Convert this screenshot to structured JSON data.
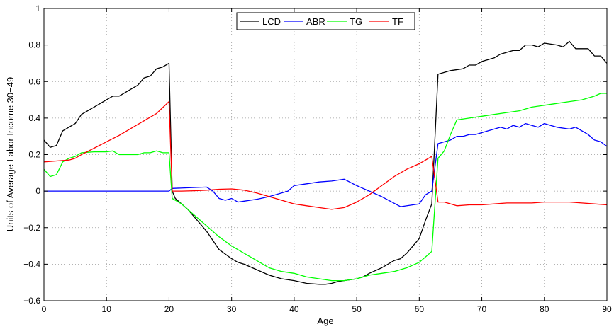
{
  "chart_data": {
    "type": "line",
    "title": "",
    "xlabel": "Age",
    "ylabel": "Units of Average Labor Income 30−49",
    "xlim": [
      0,
      90
    ],
    "ylim": [
      -0.6,
      1
    ],
    "xticks": [
      0,
      10,
      20,
      30,
      40,
      50,
      60,
      70,
      80,
      90
    ],
    "xtick_labels": [
      "0",
      "10",
      "20",
      "30",
      "40",
      "50",
      "60",
      "70",
      "80",
      "90"
    ],
    "yticks": [
      -0.6,
      -0.4,
      -0.2,
      0,
      0.2,
      0.4,
      0.6,
      0.8,
      1
    ],
    "ytick_labels": [
      "−0.6",
      "−0.4",
      "−0.2",
      "0",
      "0.2",
      "0.4",
      "0.6",
      "0.8",
      "1"
    ],
    "grid": true,
    "legend_position": "top-center",
    "series": [
      {
        "name": "LCD",
        "color": "#000000",
        "points": [
          [
            0,
            0.28
          ],
          [
            1,
            0.24
          ],
          [
            2,
            0.25
          ],
          [
            3,
            0.33
          ],
          [
            5,
            0.37
          ],
          [
            6,
            0.42
          ],
          [
            8,
            0.46
          ],
          [
            10,
            0.5
          ],
          [
            11,
            0.52
          ],
          [
            12,
            0.52
          ],
          [
            14,
            0.56
          ],
          [
            15,
            0.58
          ],
          [
            16,
            0.62
          ],
          [
            17,
            0.63
          ],
          [
            18,
            0.67
          ],
          [
            19,
            0.68
          ],
          [
            20,
            0.7
          ],
          [
            20.5,
            0.0
          ],
          [
            21,
            -0.04
          ],
          [
            23,
            -0.1
          ],
          [
            25,
            -0.18
          ],
          [
            26,
            -0.22
          ],
          [
            27,
            -0.27
          ],
          [
            28,
            -0.32
          ],
          [
            30,
            -0.37
          ],
          [
            31,
            -0.39
          ],
          [
            32,
            -0.4
          ],
          [
            34,
            -0.43
          ],
          [
            36,
            -0.46
          ],
          [
            38,
            -0.48
          ],
          [
            40,
            -0.49
          ],
          [
            42,
            -0.505
          ],
          [
            44,
            -0.51
          ],
          [
            45,
            -0.51
          ],
          [
            46,
            -0.505
          ],
          [
            47,
            -0.495
          ],
          [
            48,
            -0.49
          ],
          [
            50,
            -0.48
          ],
          [
            51,
            -0.47
          ],
          [
            52,
            -0.45
          ],
          [
            54,
            -0.42
          ],
          [
            56,
            -0.38
          ],
          [
            57,
            -0.37
          ],
          [
            58,
            -0.34
          ],
          [
            60,
            -0.26
          ],
          [
            61,
            -0.16
          ],
          [
            62,
            -0.07
          ],
          [
            63,
            0.64
          ],
          [
            65,
            0.66
          ],
          [
            67,
            0.67
          ],
          [
            68,
            0.69
          ],
          [
            69,
            0.69
          ],
          [
            70,
            0.71
          ],
          [
            72,
            0.73
          ],
          [
            73,
            0.75
          ],
          [
            75,
            0.77
          ],
          [
            76,
            0.77
          ],
          [
            77,
            0.8
          ],
          [
            78,
            0.8
          ],
          [
            79,
            0.79
          ],
          [
            80,
            0.81
          ],
          [
            82,
            0.8
          ],
          [
            83,
            0.79
          ],
          [
            84,
            0.82
          ],
          [
            85,
            0.78
          ],
          [
            86,
            0.78
          ],
          [
            87,
            0.78
          ],
          [
            88,
            0.74
          ],
          [
            89,
            0.74
          ],
          [
            90,
            0.7
          ]
        ]
      },
      {
        "name": "ABR",
        "color": "#0000ff",
        "points": [
          [
            0,
            0.0
          ],
          [
            20,
            0.0
          ],
          [
            20.5,
            0.015
          ],
          [
            26,
            0.022
          ],
          [
            27,
            0.0
          ],
          [
            28,
            -0.04
          ],
          [
            29,
            -0.05
          ],
          [
            30,
            -0.04
          ],
          [
            31,
            -0.06
          ],
          [
            32,
            -0.055
          ],
          [
            33,
            -0.05
          ],
          [
            34,
            -0.045
          ],
          [
            36,
            -0.03
          ],
          [
            38,
            -0.01
          ],
          [
            39,
            0.0
          ],
          [
            40,
            0.03
          ],
          [
            42,
            0.04
          ],
          [
            44,
            0.05
          ],
          [
            46,
            0.055
          ],
          [
            48,
            0.065
          ],
          [
            50,
            0.03
          ],
          [
            52,
            0.0
          ],
          [
            54,
            -0.03
          ],
          [
            57,
            -0.085
          ],
          [
            59,
            -0.075
          ],
          [
            60,
            -0.07
          ],
          [
            61,
            -0.02
          ],
          [
            62,
            0.0
          ],
          [
            63,
            0.26
          ],
          [
            65,
            0.28
          ],
          [
            66,
            0.3
          ],
          [
            67,
            0.3
          ],
          [
            68,
            0.31
          ],
          [
            69,
            0.31
          ],
          [
            70,
            0.32
          ],
          [
            71,
            0.33
          ],
          [
            72,
            0.34
          ],
          [
            73,
            0.35
          ],
          [
            74,
            0.34
          ],
          [
            75,
            0.36
          ],
          [
            76,
            0.35
          ],
          [
            77,
            0.37
          ],
          [
            78,
            0.36
          ],
          [
            79,
            0.35
          ],
          [
            80,
            0.37
          ],
          [
            81,
            0.36
          ],
          [
            82,
            0.35
          ],
          [
            84,
            0.34
          ],
          [
            85,
            0.35
          ],
          [
            86,
            0.33
          ],
          [
            87,
            0.31
          ],
          [
            88,
            0.28
          ],
          [
            89,
            0.27
          ],
          [
            90,
            0.245
          ]
        ]
      },
      {
        "name": "TG",
        "color": "#00ff00",
        "points": [
          [
            0,
            0.12
          ],
          [
            1,
            0.08
          ],
          [
            2,
            0.09
          ],
          [
            3,
            0.16
          ],
          [
            4,
            0.18
          ],
          [
            5,
            0.19
          ],
          [
            6,
            0.21
          ],
          [
            8,
            0.215
          ],
          [
            10,
            0.215
          ],
          [
            11,
            0.22
          ],
          [
            12,
            0.2
          ],
          [
            13,
            0.2
          ],
          [
            14,
            0.2
          ],
          [
            15,
            0.2
          ],
          [
            16,
            0.21
          ],
          [
            17,
            0.21
          ],
          [
            18,
            0.22
          ],
          [
            19,
            0.21
          ],
          [
            20,
            0.21
          ],
          [
            20.5,
            -0.04
          ],
          [
            21,
            -0.05
          ],
          [
            22,
            -0.07
          ],
          [
            24,
            -0.13
          ],
          [
            26,
            -0.19
          ],
          [
            28,
            -0.25
          ],
          [
            30,
            -0.3
          ],
          [
            32,
            -0.34
          ],
          [
            34,
            -0.38
          ],
          [
            36,
            -0.42
          ],
          [
            38,
            -0.44
          ],
          [
            40,
            -0.45
          ],
          [
            42,
            -0.47
          ],
          [
            44,
            -0.48
          ],
          [
            46,
            -0.49
          ],
          [
            48,
            -0.49
          ],
          [
            50,
            -0.48
          ],
          [
            52,
            -0.46
          ],
          [
            54,
            -0.45
          ],
          [
            56,
            -0.44
          ],
          [
            58,
            -0.42
          ],
          [
            60,
            -0.39
          ],
          [
            61,
            -0.36
          ],
          [
            62,
            -0.33
          ],
          [
            63,
            0.18
          ],
          [
            64,
            0.22
          ],
          [
            65,
            0.31
          ],
          [
            66,
            0.39
          ],
          [
            68,
            0.4
          ],
          [
            70,
            0.41
          ],
          [
            72,
            0.42
          ],
          [
            74,
            0.43
          ],
          [
            76,
            0.44
          ],
          [
            78,
            0.46
          ],
          [
            80,
            0.47
          ],
          [
            82,
            0.48
          ],
          [
            84,
            0.49
          ],
          [
            86,
            0.5
          ],
          [
            88,
            0.52
          ],
          [
            89,
            0.535
          ],
          [
            90,
            0.535
          ]
        ]
      },
      {
        "name": "TF",
        "color": "#ff0000",
        "points": [
          [
            0,
            0.16
          ],
          [
            2,
            0.165
          ],
          [
            4,
            0.17
          ],
          [
            5,
            0.18
          ],
          [
            6,
            0.2
          ],
          [
            8,
            0.235
          ],
          [
            10,
            0.27
          ],
          [
            12,
            0.305
          ],
          [
            14,
            0.345
          ],
          [
            16,
            0.385
          ],
          [
            18,
            0.425
          ],
          [
            20,
            0.49
          ],
          [
            20.5,
            0.0
          ],
          [
            22,
            0.0
          ],
          [
            24,
            0.002
          ],
          [
            26,
            0.005
          ],
          [
            28,
            0.01
          ],
          [
            30,
            0.012
          ],
          [
            32,
            0.005
          ],
          [
            34,
            -0.01
          ],
          [
            36,
            -0.03
          ],
          [
            38,
            -0.05
          ],
          [
            40,
            -0.07
          ],
          [
            42,
            -0.08
          ],
          [
            44,
            -0.09
          ],
          [
            46,
            -0.1
          ],
          [
            48,
            -0.09
          ],
          [
            50,
            -0.06
          ],
          [
            52,
            -0.02
          ],
          [
            54,
            0.03
          ],
          [
            56,
            0.08
          ],
          [
            58,
            0.12
          ],
          [
            60,
            0.15
          ],
          [
            62,
            0.19
          ],
          [
            63,
            -0.06
          ],
          [
            64,
            -0.06
          ],
          [
            66,
            -0.08
          ],
          [
            68,
            -0.075
          ],
          [
            70,
            -0.075
          ],
          [
            72,
            -0.07
          ],
          [
            74,
            -0.065
          ],
          [
            76,
            -0.065
          ],
          [
            78,
            -0.065
          ],
          [
            80,
            -0.06
          ],
          [
            82,
            -0.06
          ],
          [
            84,
            -0.06
          ],
          [
            86,
            -0.065
          ],
          [
            88,
            -0.07
          ],
          [
            90,
            -0.075
          ]
        ]
      }
    ]
  }
}
